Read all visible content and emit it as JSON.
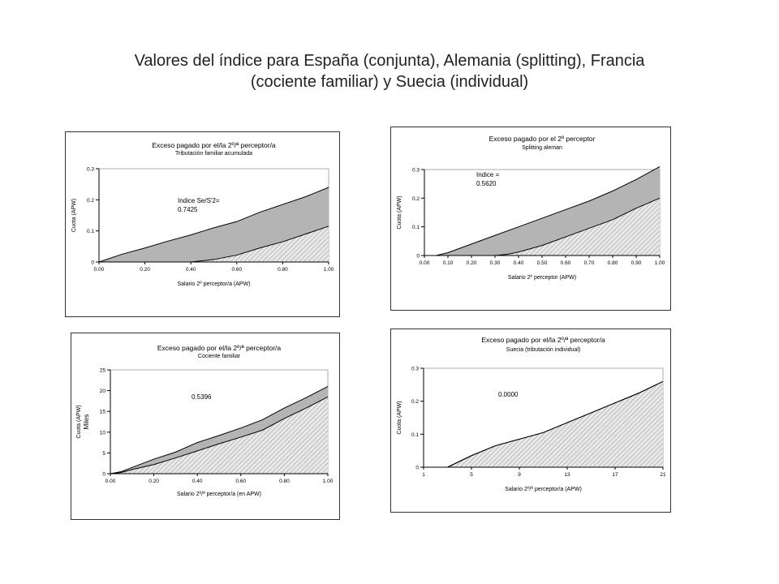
{
  "slide_title_line1": "Valores del índice para España (conjunta), Alemania (splitting), Francia",
  "slide_title_line2": "(cociente familiar) y Suecia (individual)",
  "colors": {
    "upper_fill": "#b4b4b4",
    "lower_fill": "#e8e8e8",
    "hatch_line": "#8a8a8a",
    "line": "#000000"
  },
  "chart_data": [
    {
      "type": "area",
      "title": "Exceso pagado por el/la 2º/ª perceptor/a",
      "subtitle": "Tributación familiar acumulada",
      "xlabel": "Salario 2º perceptor/a (APW)",
      "ylabel": "Cuota (APW)",
      "ylabel2": "",
      "annotation_lines": [
        "Indice Se/S'2=",
        "0.7425"
      ],
      "xlim": [
        0,
        1
      ],
      "ylim": [
        0,
        0.3
      ],
      "x_ticks": [
        0,
        0.2,
        0.4,
        0.6,
        0.8,
        1.0
      ],
      "x_tick_labels": [
        "0.00",
        "0.20",
        "0.40",
        "0.60",
        "0.80",
        "1.00"
      ],
      "y_ticks": [
        0,
        0.1,
        0.2,
        0.3
      ],
      "y_tick_labels": [
        "0",
        "0.1",
        "0.2",
        "0.3"
      ],
      "series": [
        {
          "x": [
            0,
            0.1,
            0.2,
            0.3,
            0.4,
            0.5,
            0.6,
            0.7,
            0.8,
            0.9,
            1.0
          ],
          "values": [
            0,
            0.025,
            0.045,
            0.067,
            0.087,
            0.11,
            0.13,
            0.16,
            0.185,
            0.21,
            0.24
          ]
        },
        {
          "x": [
            0,
            0.4,
            0.45,
            0.5,
            0.6,
            0.7,
            0.8,
            0.9,
            1.0
          ],
          "values": [
            0,
            0,
            0.004,
            0.008,
            0.022,
            0.045,
            0.065,
            0.09,
            0.115
          ]
        }
      ]
    },
    {
      "type": "area",
      "title": "Exceso pagado por el 2º perceptor",
      "subtitle": "Splitting aleman",
      "xlabel": "Salario 2º perceptor (APW)",
      "ylabel": "Cuota (APW)",
      "ylabel2": "",
      "annotation_lines": [
        "Indice =",
        "0.5620"
      ],
      "xlim": [
        0,
        1
      ],
      "ylim": [
        0,
        0.3
      ],
      "x_ticks": [
        0,
        0.1,
        0.2,
        0.3,
        0.4,
        0.5,
        0.6,
        0.7,
        0.8,
        0.9,
        1.0
      ],
      "x_tick_labels": [
        "0.00",
        "0.10",
        "0.20",
        "0.30",
        "0.40",
        "0.50",
        "0.60",
        "0.70",
        "0.80",
        "0.90",
        "1.00"
      ],
      "y_ticks": [
        0,
        0.1,
        0.2,
        0.3
      ],
      "y_tick_labels": [
        "0",
        "0.1",
        "0.2",
        "0.3"
      ],
      "series": [
        {
          "x": [
            0,
            0.05,
            0.1,
            0.2,
            0.3,
            0.4,
            0.5,
            0.6,
            0.7,
            0.8,
            0.9,
            1.0
          ],
          "values": [
            0,
            0,
            0.01,
            0.04,
            0.07,
            0.1,
            0.13,
            0.16,
            0.19,
            0.225,
            0.265,
            0.31
          ]
        },
        {
          "x": [
            0,
            0.3,
            0.35,
            0.4,
            0.5,
            0.6,
            0.7,
            0.8,
            0.9,
            1.0
          ],
          "values": [
            0,
            0,
            0.004,
            0.012,
            0.035,
            0.065,
            0.095,
            0.125,
            0.165,
            0.2
          ]
        }
      ]
    },
    {
      "type": "area",
      "title": "Exceso pagado por el/la 2º/ª perceptor/a",
      "subtitle": "Cociente familiar",
      "xlabel": "Salario 2º/ª perceptor/a (en APW)",
      "ylabel": "Cuota (APW)",
      "ylabel2": "Miles",
      "annotation_lines": [
        "0.5396"
      ],
      "xlim": [
        0,
        1
      ],
      "ylim": [
        0,
        25
      ],
      "x_ticks": [
        0,
        0.2,
        0.4,
        0.6,
        0.8,
        1.0
      ],
      "x_tick_labels": [
        "0.00",
        "0.20",
        "0.40",
        "0.60",
        "0.80",
        "1.00"
      ],
      "y_ticks": [
        0,
        5,
        10,
        15,
        20,
        25
      ],
      "y_tick_labels": [
        "0",
        "5",
        "10",
        "15",
        "20",
        "25"
      ],
      "series": [
        {
          "x": [
            0,
            0.05,
            0.1,
            0.2,
            0.3,
            0.4,
            0.5,
            0.6,
            0.7,
            0.8,
            0.9,
            1.0
          ],
          "values": [
            0,
            0.5,
            1.5,
            3.5,
            5.2,
            7.5,
            9.2,
            11,
            13,
            15.8,
            18.3,
            21
          ]
        },
        {
          "x": [
            0,
            0.05,
            0.1,
            0.2,
            0.3,
            0.4,
            0.5,
            0.6,
            0.7,
            0.8,
            0.9,
            1.0
          ],
          "values": [
            0,
            0.3,
            1,
            2.2,
            3.8,
            5.5,
            7.2,
            8.8,
            10.5,
            13.3,
            15.8,
            18.5
          ]
        }
      ]
    },
    {
      "type": "area",
      "title": "Exceso pagado por el/la 2º/ª perceptor/a",
      "subtitle": "Suecia (tributación individual)",
      "xlabel": "Salario 2º/ª perceptor/a (APW)",
      "ylabel": "Cuota (APW)",
      "ylabel2": "",
      "annotation_lines": [
        "0.0000"
      ],
      "xlim": [
        1,
        21
      ],
      "ylim": [
        0,
        0.3
      ],
      "x_ticks": [
        1,
        5,
        9,
        13,
        17,
        21
      ],
      "x_tick_labels": [
        "1",
        "5",
        "9",
        "13",
        "17",
        "21"
      ],
      "y_ticks": [
        0,
        0.1,
        0.2,
        0.3
      ],
      "y_tick_labels": [
        "0",
        "0.1",
        "0.2",
        "0.3"
      ],
      "series": [
        {
          "x": [
            1,
            3,
            5,
            7,
            9,
            11,
            13,
            15,
            17,
            19,
            21
          ],
          "values": [
            0,
            0,
            0.035,
            0.065,
            0.085,
            0.105,
            0.135,
            0.165,
            0.195,
            0.225,
            0.26
          ]
        },
        {
          "x": [
            1,
            3,
            5,
            7,
            9,
            11,
            13,
            15,
            17,
            19,
            21
          ],
          "values": [
            0,
            0,
            0.035,
            0.065,
            0.085,
            0.105,
            0.135,
            0.165,
            0.195,
            0.225,
            0.26
          ]
        }
      ]
    }
  ]
}
